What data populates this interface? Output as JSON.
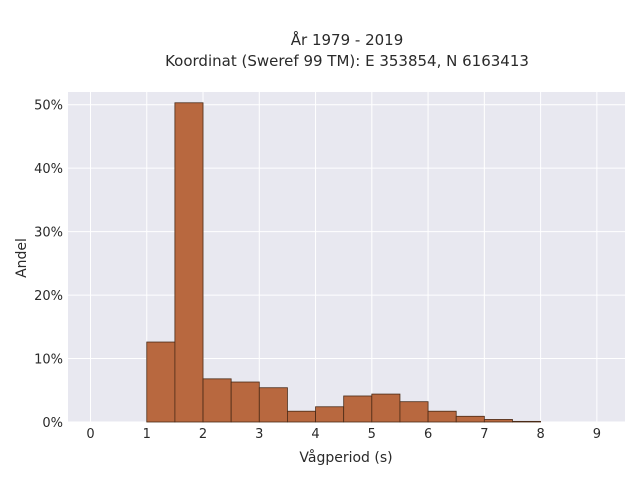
{
  "chart_data": {
    "type": "bar",
    "title": "År 1979 - 2019",
    "subtitle": "Koordinat (Sweref 99 TM): E 353854, N 6163413",
    "xlabel": "Vågperiod (s)",
    "ylabel": "Andel",
    "xlim": [
      -0.4,
      9.5
    ],
    "ylim": [
      0,
      52
    ],
    "x_ticks": [
      0,
      1,
      2,
      3,
      4,
      5,
      6,
      7,
      8,
      9
    ],
    "y_ticks": [
      0,
      10,
      20,
      30,
      40,
      50
    ],
    "y_tick_labels": [
      "0%",
      "10%",
      "20%",
      "30%",
      "40%",
      "50%"
    ],
    "bin_width": 0.5,
    "bins": [
      {
        "x0": 1.0,
        "value": 12.6
      },
      {
        "x0": 1.5,
        "value": 50.3
      },
      {
        "x0": 2.0,
        "value": 6.8
      },
      {
        "x0": 2.5,
        "value": 6.3
      },
      {
        "x0": 3.0,
        "value": 5.4
      },
      {
        "x0": 3.5,
        "value": 1.7
      },
      {
        "x0": 4.0,
        "value": 2.4
      },
      {
        "x0": 4.5,
        "value": 4.1
      },
      {
        "x0": 5.0,
        "value": 4.4
      },
      {
        "x0": 5.5,
        "value": 3.2
      },
      {
        "x0": 6.0,
        "value": 1.7
      },
      {
        "x0": 6.5,
        "value": 0.9
      },
      {
        "x0": 7.0,
        "value": 0.4
      },
      {
        "x0": 7.5,
        "value": 0.1
      }
    ],
    "grid": true,
    "colors": {
      "bar_fill": "#b8683f",
      "bar_stroke": "#4a2a16",
      "plot_background": "#e8e8f0",
      "grid": "#ffffff"
    }
  }
}
